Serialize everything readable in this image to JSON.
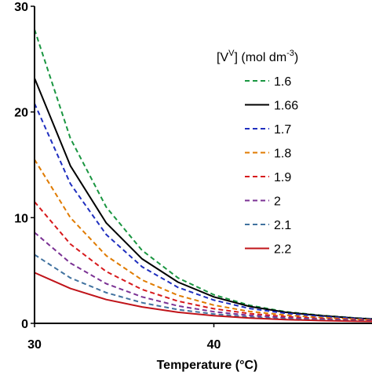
{
  "chart_data": {
    "type": "line",
    "title": "",
    "xlabel": "Temperature (°C)",
    "ylabel": "",
    "xlim": [
      30,
      50
    ],
    "ylim": [
      0,
      30
    ],
    "x_ticks": [
      30,
      40
    ],
    "y_ticks": [
      0,
      10,
      20,
      30
    ],
    "grid": false,
    "legend": {
      "placement": "right",
      "title": {
        "prefix": "[V",
        "superscript": "V",
        "middle": "] (mol dm",
        "unit_superscript": "-3",
        "suffix": ")"
      }
    },
    "x": [
      30,
      32,
      34,
      36,
      38,
      40,
      42,
      44,
      46,
      48,
      50
    ],
    "series": [
      {
        "name": "1.6",
        "color": "#1a9641",
        "dash": "dashed",
        "values": [
          27.8,
          17.5,
          11.0,
          6.9,
          4.3,
          2.7,
          1.7,
          1.1,
          0.75,
          0.5,
          0.35
        ]
      },
      {
        "name": "1.66",
        "color": "#000000",
        "dash": "solid",
        "values": [
          23.2,
          14.9,
          9.5,
          6.1,
          3.9,
          2.5,
          1.6,
          1.05,
          0.72,
          0.48,
          0.33
        ]
      },
      {
        "name": "1.7",
        "color": "#1f2fbf",
        "dash": "dashed",
        "values": [
          20.8,
          13.2,
          8.4,
          5.35,
          3.4,
          2.2,
          1.4,
          0.95,
          0.65,
          0.45,
          0.3
        ]
      },
      {
        "name": "1.8",
        "color": "#e07b00",
        "dash": "dashed",
        "values": [
          15.5,
          10.0,
          6.4,
          4.1,
          2.65,
          1.72,
          1.12,
          0.78,
          0.54,
          0.38,
          0.27
        ]
      },
      {
        "name": "1.9",
        "color": "#d7191c",
        "dash": "dashed",
        "values": [
          11.5,
          7.5,
          4.9,
          3.2,
          2.1,
          1.38,
          0.92,
          0.64,
          0.45,
          0.32,
          0.23
        ]
      },
      {
        "name": "2",
        "color": "#7b3294",
        "dash": "dashed",
        "values": [
          8.6,
          5.7,
          3.75,
          2.5,
          1.65,
          1.1,
          0.75,
          0.53,
          0.38,
          0.27,
          0.2
        ]
      },
      {
        "name": "2.1",
        "color": "#41729f",
        "dash": "dashed",
        "values": [
          6.5,
          4.3,
          2.9,
          1.95,
          1.3,
          0.88,
          0.6,
          0.43,
          0.31,
          0.22,
          0.16
        ]
      },
      {
        "name": "2.2",
        "color": "#c0141a",
        "dash": "solid",
        "values": [
          4.8,
          3.3,
          2.25,
          1.55,
          1.05,
          0.72,
          0.5,
          0.36,
          0.26,
          0.19,
          0.14
        ]
      }
    ]
  }
}
